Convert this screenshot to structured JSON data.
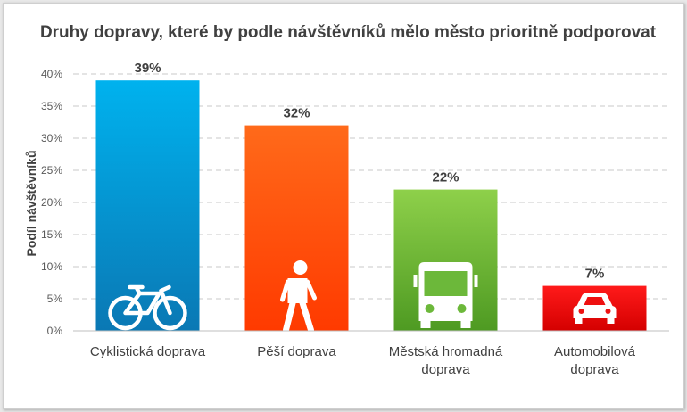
{
  "chart_data": {
    "type": "bar",
    "title": "Druhy dopravy, které by podle návštěvníků mělo město prioritně podporovat",
    "ylabel": "Podíl návštěvníků",
    "xlabel": "",
    "ylim": [
      0,
      40
    ],
    "yticks": [
      "0%",
      "5%",
      "10%",
      "15%",
      "20%",
      "25%",
      "30%",
      "35%",
      "40%"
    ],
    "grid": true,
    "legend": "none",
    "categories": [
      [
        "Cyklistická doprava"
      ],
      [
        "Pěší doprava"
      ],
      [
        "Městská hromadná",
        "doprava"
      ],
      [
        "Automobilová",
        "doprava"
      ]
    ],
    "values": [
      39,
      32,
      22,
      7
    ],
    "value_labels": [
      "39%",
      "32%",
      "22%",
      "7%"
    ],
    "icons": [
      "bicycle-icon",
      "pedestrian-icon",
      "bus-icon",
      "car-icon"
    ],
    "gradients": [
      [
        "#00b2ee",
        "#0a78b4"
      ],
      [
        "#ff6a1a",
        "#ff3a00"
      ],
      [
        "#8ed04a",
        "#4e9a22"
      ],
      [
        "#ff1a1a",
        "#d40000"
      ]
    ],
    "colors": [
      "#0ca6e6",
      "#ff5010",
      "#6cb83a",
      "#ee1010"
    ]
  }
}
